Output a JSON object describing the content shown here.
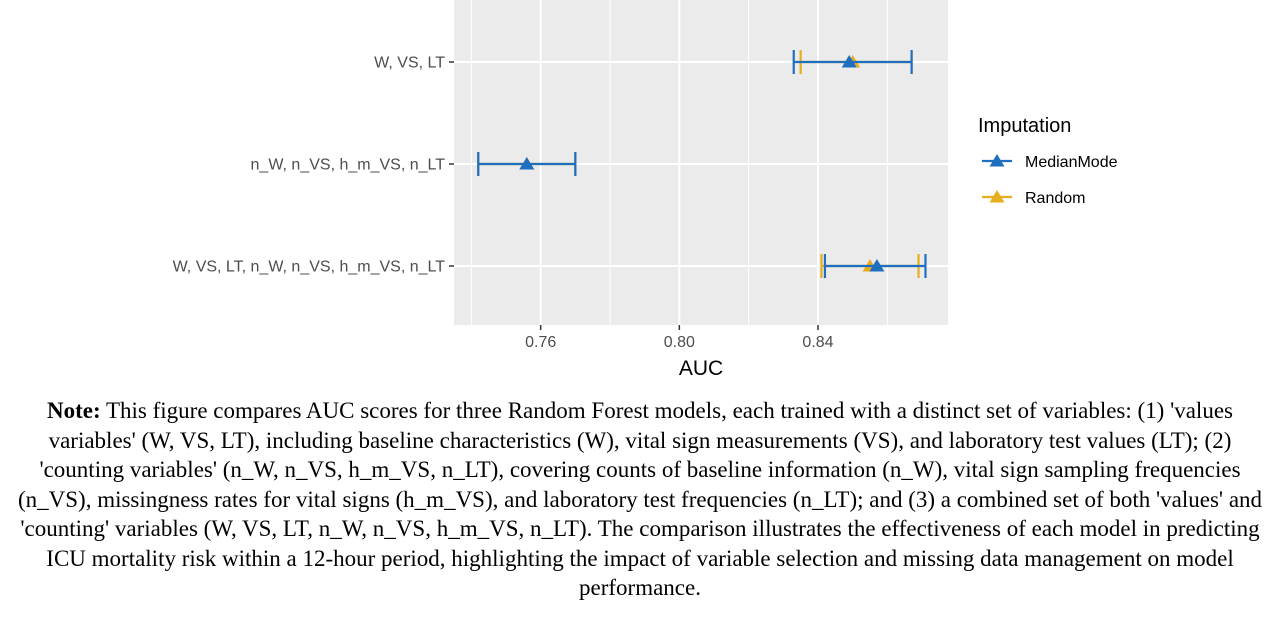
{
  "chart_data": {
    "type": "forest",
    "xlabel": "AUC",
    "ylabel": "",
    "xlim": [
      0.735,
      0.8775
    ],
    "xticks": [
      0.76,
      0.8,
      0.84
    ],
    "x_tick_labels": [
      "0.76",
      "0.80",
      "0.84"
    ],
    "grid": true,
    "categories": [
      "W, VS, LT",
      "n_W, n_VS, h_m_VS, n_LT",
      "W, VS, LT, n_W, n_VS, h_m_VS, n_LT"
    ],
    "legend": {
      "title": "Imputation",
      "placement": "right"
    },
    "series": [
      {
        "name": "MedianMode",
        "color": "#1f6fc1",
        "estimates": [
          0.849,
          0.756,
          0.857
        ],
        "lower": [
          0.833,
          0.742,
          0.842
        ],
        "upper": [
          0.867,
          0.77,
          0.871
        ]
      },
      {
        "name": "Random",
        "color": "#e8ac1f",
        "estimates": [
          0.85,
          0.756,
          0.855
        ],
        "lower": [
          0.835,
          0.742,
          0.841
        ],
        "upper": [
          0.867,
          0.77,
          0.869
        ]
      }
    ]
  },
  "note": {
    "label": "Note:",
    "text": "This figure compares AUC scores for three Random Forest models, each trained with a distinct set of variables: (1) 'values variables' (W, VS, LT), including baseline characteristics (W), vital sign measurements (VS), and laboratory test values (LT); (2) 'counting variables' (n_W, n_VS, h_m_VS, n_LT), covering counts of baseline information (n_W), vital sign sampling frequencies (n_VS), missingness rates for vital signs (h_m_VS), and laboratory test frequencies (n_LT); and (3) a combined set of both 'values' and 'counting' variables (W, VS, LT, n_W, n_VS, h_m_VS, n_LT). The comparison illustrates the effectiveness of each model in predicting ICU mortality risk within a 12-hour period, highlighting the impact of variable selection and missing data management on model performance."
  }
}
